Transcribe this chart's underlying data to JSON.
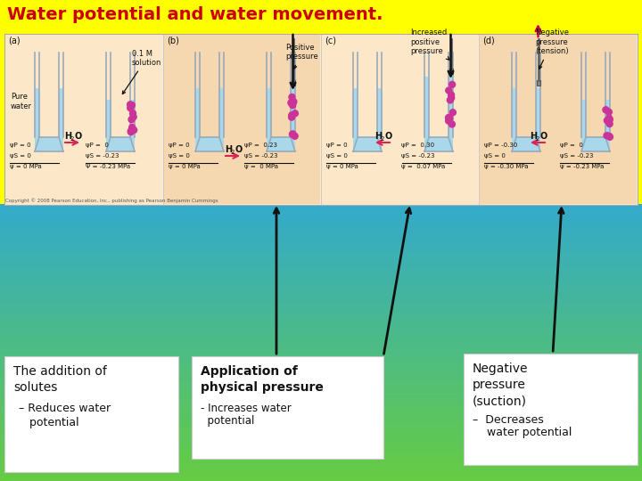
{
  "title": "Water potential and water movement.",
  "title_color": "#cc0000",
  "title_fontsize": 14,
  "bg_yellow": "#ffff00",
  "bg_green": "#66bb44",
  "bg_cyan": "#44bbcc",
  "panel_bg_light": "#fce8c8",
  "panel_bg_dark": "#f5d5a0",
  "water_color": "#a8d8ea",
  "solute_color": "#cc3399",
  "tube_color": "#bbbbbb",
  "panel_labels": [
    "(a)",
    "(b)",
    "(c)",
    "(d)"
  ],
  "psi_p": [
    "ψP = 0",
    "ψP =  0",
    "ψP = 0",
    "ψP =  0.23",
    "ψP = 0",
    "ψP =  0.30",
    "ψP = -0.30",
    "ψP =  0"
  ],
  "psi_s": [
    "ψS = 0",
    "ψS = -0.23",
    "ψS = 0",
    "ψS = -0.23",
    "ψS = 0",
    "ψS = -0.23",
    "ψS = 0",
    "ψS = -0.23"
  ],
  "psi_t": [
    "ψ = 0 MPa",
    "Ψ = -0.23 MPa",
    "ψ = 0 MPa",
    "ψ =  0 MPa",
    "ψ = 0 MPa",
    "ψ =  0.07 MPa",
    "ψ = -0.30 MPa",
    "ψ = -0.23 MPa"
  ],
  "copyright": "Copyright © 2008 Pearson Education, Inc., publishing as Pearson Benjamin Cummings",
  "box1_line1": "The addition of",
  "box1_line2": "solutes",
  "box1_line3": "– Reduces water",
  "box1_line4": "   potential",
  "box2_line1": "Application of",
  "box2_line2": "physical pressure",
  "box2_line3": "- Increases water",
  "box2_line4": "  potential",
  "box3_line1": "Negative",
  "box3_line2": "pressure",
  "box3_line3": "(suction)",
  "box3_line4": "–  Decreases",
  "box3_line5": "    water potential"
}
